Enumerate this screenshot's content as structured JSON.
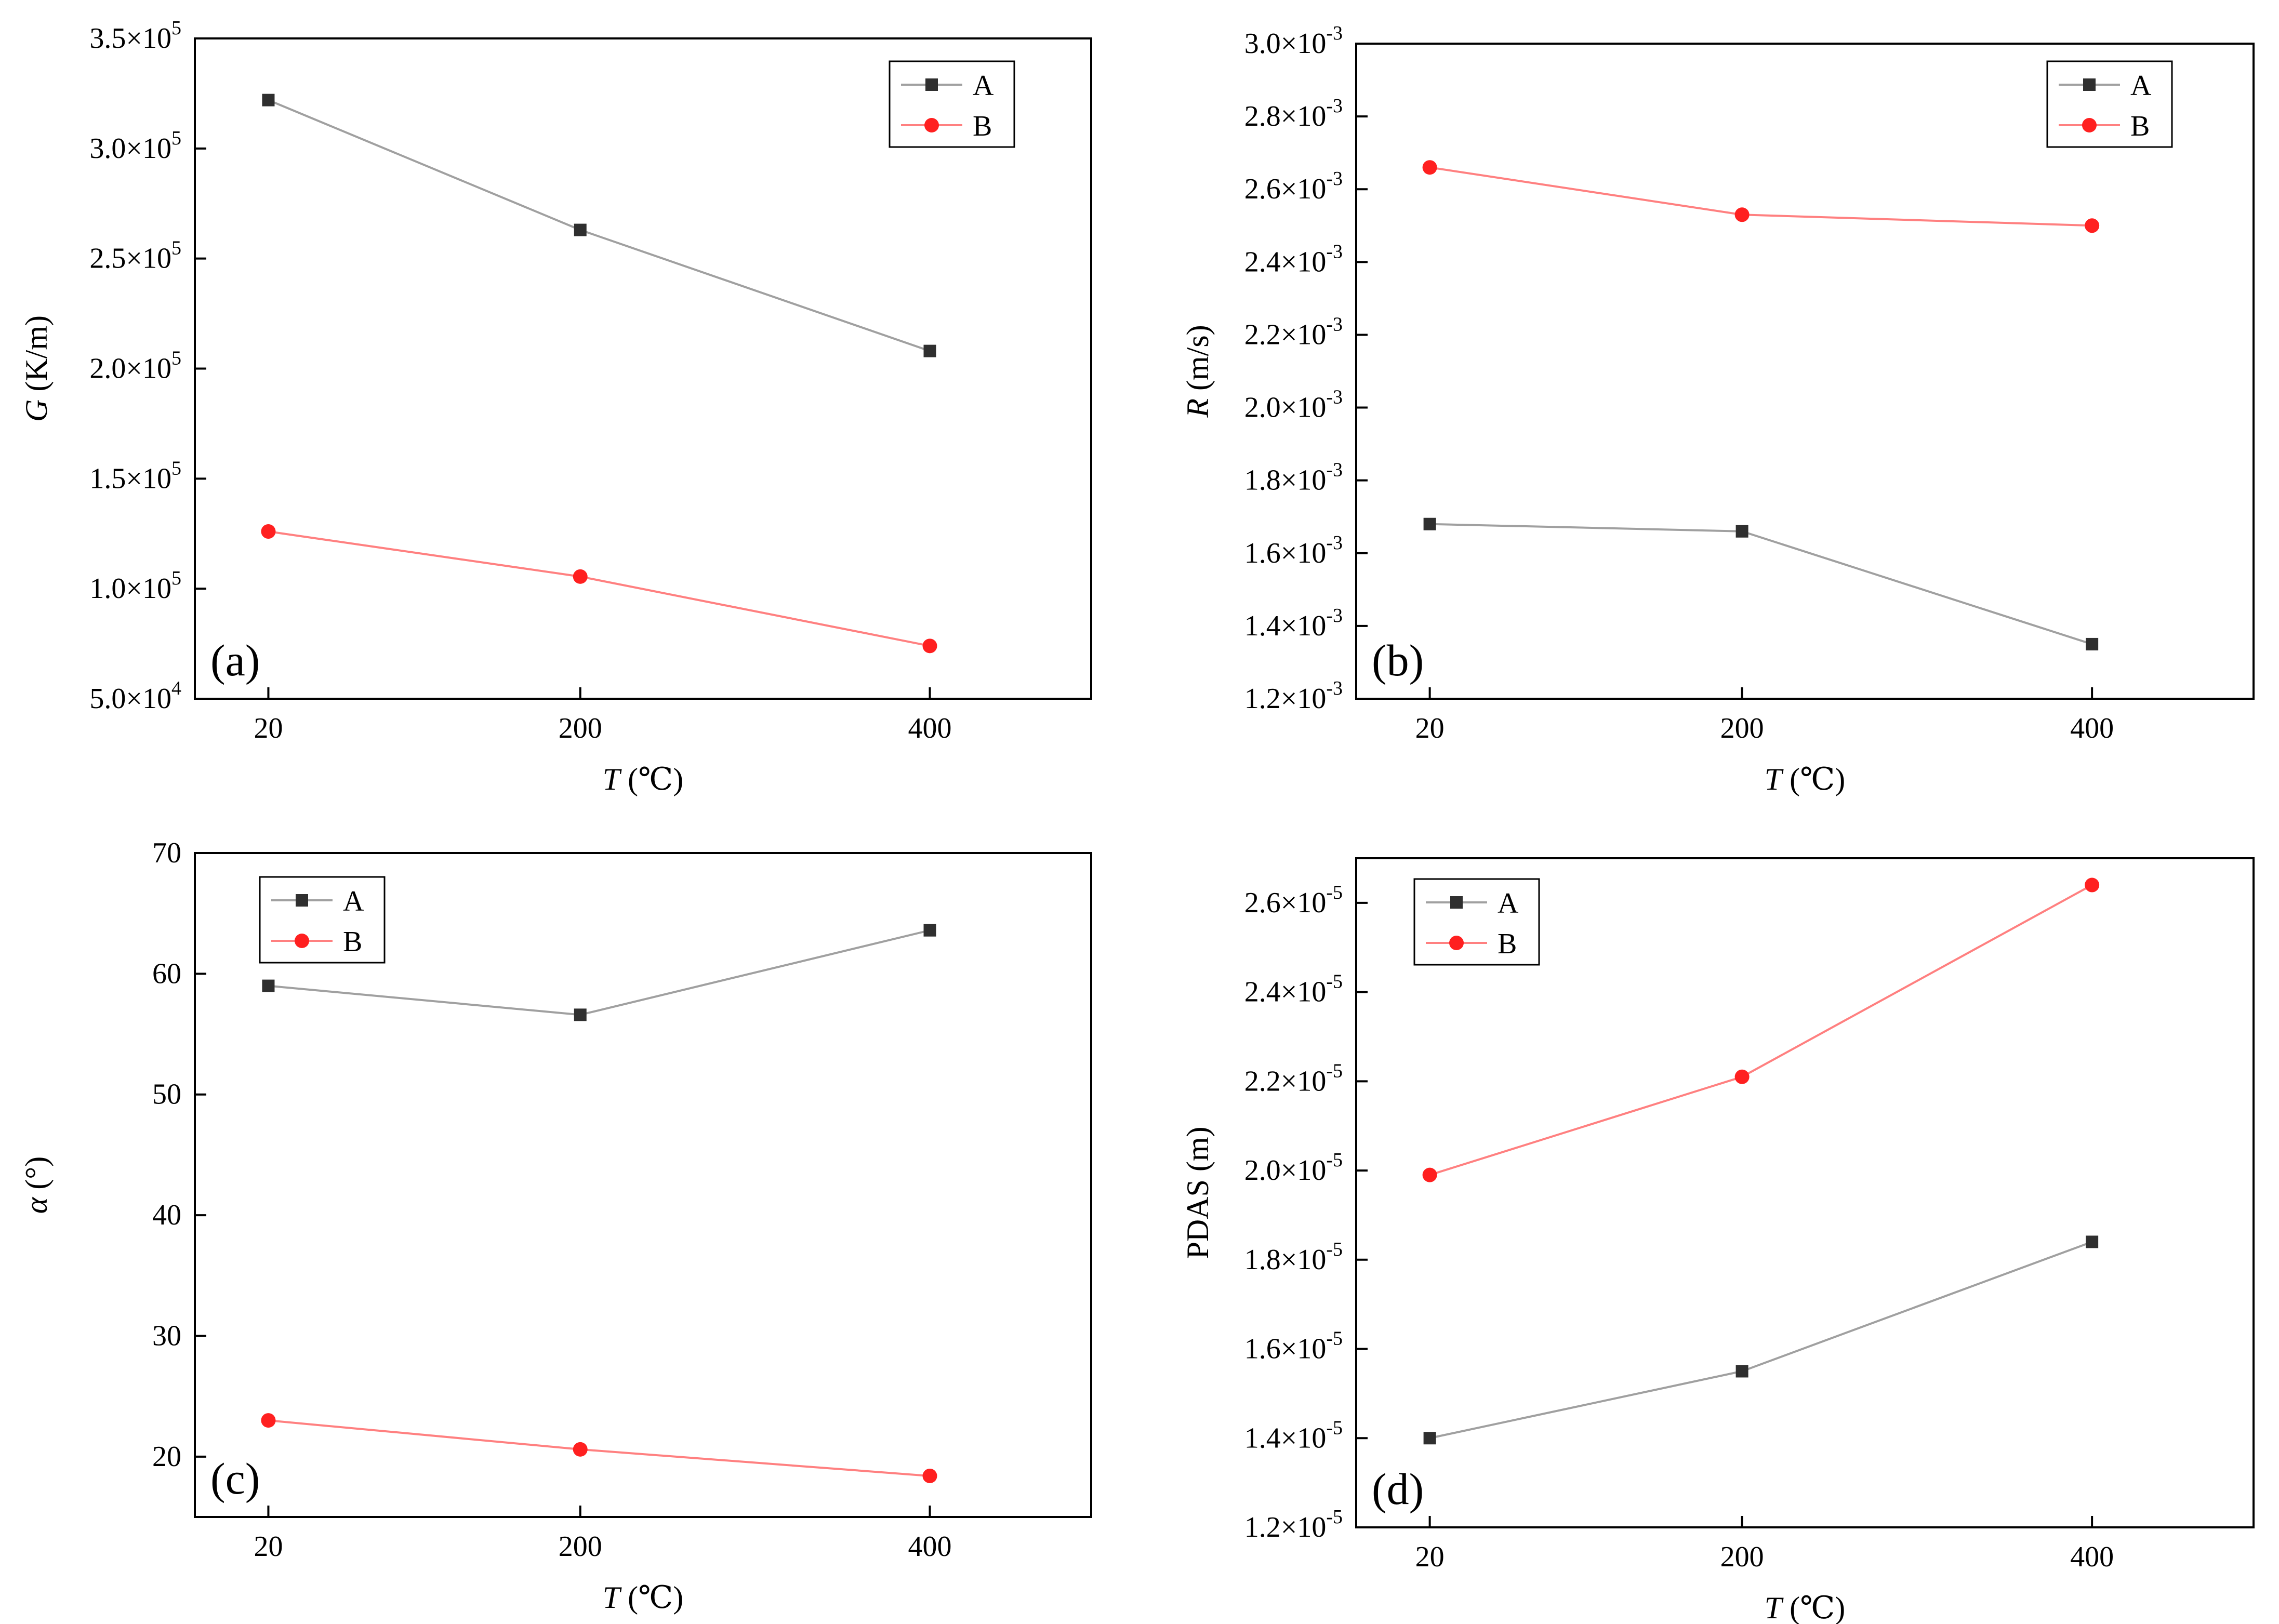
{
  "colors": {
    "series_a_line": "#a0a0a0",
    "series_a_marker": "#2f2f2f",
    "series_b_line": "#ff8080",
    "series_b_marker": "#ff2020",
    "axes": "#000000"
  },
  "chart_data": [
    {
      "id": "a",
      "type": "line",
      "panel_label": "(a)",
      "xlabel_var": "T",
      "xlabel_unit": " (℃)",
      "ylabel_var": "G",
      "ylabel_unit": " (K/m)",
      "categories": [
        "20",
        "200",
        "400"
      ],
      "ylim": [
        50000,
        350000
      ],
      "yticks": [
        {
          "value": 50000,
          "mant": "5.0×10",
          "exp": "4"
        },
        {
          "value": 100000,
          "mant": "1.0×10",
          "exp": "5"
        },
        {
          "value": 150000,
          "mant": "1.5×10",
          "exp": "5"
        },
        {
          "value": 200000,
          "mant": "2.0×10",
          "exp": "5"
        },
        {
          "value": 250000,
          "mant": "2.5×10",
          "exp": "5"
        },
        {
          "value": 300000,
          "mant": "3.0×10",
          "exp": "5"
        },
        {
          "value": 350000,
          "mant": "3.5×10",
          "exp": "5"
        }
      ],
      "legend_position": "top-right",
      "series": [
        {
          "name": "A",
          "marker": "square",
          "values": [
            322000,
            263000,
            208000
          ]
        },
        {
          "name": "B",
          "marker": "circle",
          "values": [
            126000,
            105500,
            74000
          ]
        }
      ]
    },
    {
      "id": "b",
      "type": "line",
      "panel_label": "(b)",
      "xlabel_var": "T",
      "xlabel_unit": " (℃)",
      "ylabel_var": "R",
      "ylabel_unit": " (m/s)",
      "categories": [
        "20",
        "200",
        "400"
      ],
      "ylim": [
        0.0012,
        0.003
      ],
      "yticks": [
        {
          "value": 0.0012,
          "mant": "1.2×10",
          "exp": "-3"
        },
        {
          "value": 0.0014,
          "mant": "1.4×10",
          "exp": "-3"
        },
        {
          "value": 0.0016,
          "mant": "1.6×10",
          "exp": "-3"
        },
        {
          "value": 0.0018,
          "mant": "1.8×10",
          "exp": "-3"
        },
        {
          "value": 0.002,
          "mant": "2.0×10",
          "exp": "-3"
        },
        {
          "value": 0.0022,
          "mant": "2.2×10",
          "exp": "-3"
        },
        {
          "value": 0.0024,
          "mant": "2.4×10",
          "exp": "-3"
        },
        {
          "value": 0.0026,
          "mant": "2.6×10",
          "exp": "-3"
        },
        {
          "value": 0.0028,
          "mant": "2.8×10",
          "exp": "-3"
        },
        {
          "value": 0.003,
          "mant": "3.0×10",
          "exp": "-3"
        }
      ],
      "legend_position": "top-right",
      "series": [
        {
          "name": "A",
          "marker": "square",
          "values": [
            0.00168,
            0.00166,
            0.00135
          ]
        },
        {
          "name": "B",
          "marker": "circle",
          "values": [
            0.00266,
            0.00253,
            0.0025
          ]
        }
      ]
    },
    {
      "id": "c",
      "type": "line",
      "panel_label": "(c)",
      "xlabel_var": "T",
      "xlabel_unit": " (℃)",
      "ylabel_var": "α",
      "ylabel_unit": " (°)",
      "categories": [
        "20",
        "200",
        "400"
      ],
      "ylim": [
        15,
        70
      ],
      "yticks": [
        {
          "value": 20,
          "mant": "20",
          "exp": ""
        },
        {
          "value": 30,
          "mant": "30",
          "exp": ""
        },
        {
          "value": 40,
          "mant": "40",
          "exp": ""
        },
        {
          "value": 50,
          "mant": "50",
          "exp": ""
        },
        {
          "value": 60,
          "mant": "60",
          "exp": ""
        },
        {
          "value": 70,
          "mant": "70",
          "exp": ""
        }
      ],
      "legend_position": "top-left",
      "series": [
        {
          "name": "A",
          "marker": "square",
          "values": [
            59.0,
            56.6,
            63.6
          ]
        },
        {
          "name": "B",
          "marker": "circle",
          "values": [
            23.0,
            20.6,
            18.4
          ]
        }
      ]
    },
    {
      "id": "d",
      "type": "line",
      "panel_label": "(d)",
      "xlabel_var": "T",
      "xlabel_unit": " (℃)",
      "ylabel_var": "PDAS",
      "ylabel_unit": " (m)",
      "categories": [
        "20",
        "200",
        "400"
      ],
      "ylim": [
        1.2e-05,
        2.7e-05
      ],
      "yticks": [
        {
          "value": 1.2e-05,
          "mant": "1.2×10",
          "exp": "-5"
        },
        {
          "value": 1.4e-05,
          "mant": "1.4×10",
          "exp": "-5"
        },
        {
          "value": 1.6e-05,
          "mant": "1.6×10",
          "exp": "-5"
        },
        {
          "value": 1.8e-05,
          "mant": "1.8×10",
          "exp": "-5"
        },
        {
          "value": 2e-05,
          "mant": "2.0×10",
          "exp": "-5"
        },
        {
          "value": 2.2e-05,
          "mant": "2.2×10",
          "exp": "-5"
        },
        {
          "value": 2.4e-05,
          "mant": "2.4×10",
          "exp": "-5"
        },
        {
          "value": 2.6e-05,
          "mant": "2.6×10",
          "exp": "-5"
        }
      ],
      "legend_position": "top-left",
      "series": [
        {
          "name": "A",
          "marker": "square",
          "values": [
            1.4e-05,
            1.55e-05,
            1.84e-05
          ]
        },
        {
          "name": "B",
          "marker": "circle",
          "values": [
            1.99e-05,
            2.21e-05,
            2.64e-05
          ]
        }
      ]
    }
  ]
}
